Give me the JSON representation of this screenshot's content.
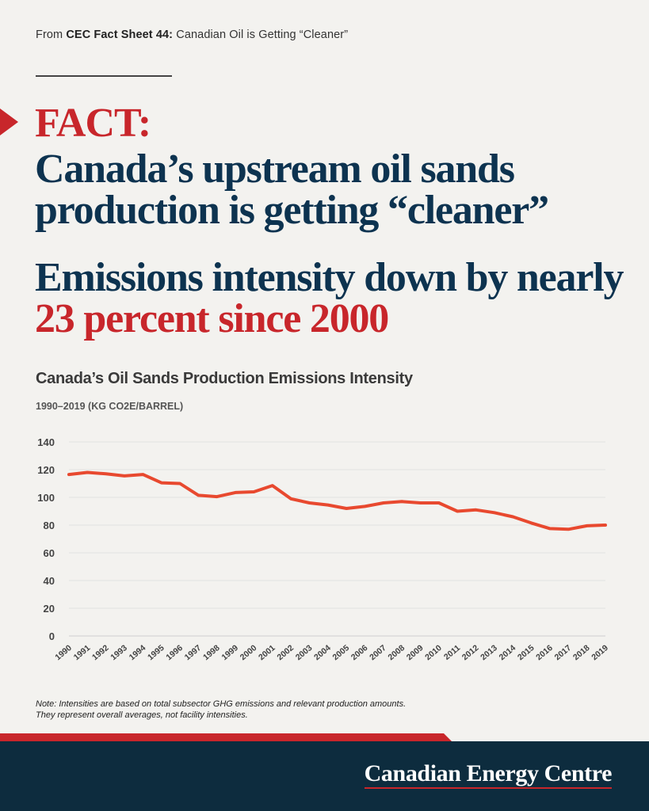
{
  "header": {
    "source_prefix": "From ",
    "source_bold": "CEC Fact Sheet 44:",
    "source_rest": " Canadian Oil is Getting “Cleaner”"
  },
  "headline": {
    "fact": "FACT:",
    "line1": "Canada’s upstream oil sands production is getting “cleaner”",
    "line2_prefix": "Emissions intensity down by nearly ",
    "line2_highlight": "23 percent since 2000"
  },
  "colors": {
    "accent_red": "#c8262b",
    "navy": "#0d3350",
    "footer_bg": "#0d2c3e",
    "line": "#e8492f"
  },
  "chart_data": {
    "type": "line",
    "title": "Canada’s Oil Sands Production Emissions Intensity",
    "subtitle": "1990–2019 (KG CO2E/BARREL)",
    "x": [
      "1990",
      "1991",
      "1992",
      "1993",
      "1994",
      "1995",
      "1996",
      "1997",
      "1998",
      "1999",
      "2000",
      "2001",
      "2002",
      "2003",
      "2004",
      "2005",
      "2006",
      "2007",
      "2008",
      "2009",
      "2010",
      "2011",
      "2012",
      "2013",
      "2014",
      "2015",
      "2016",
      "2017",
      "2018",
      "2019"
    ],
    "series": [
      {
        "values": [
          116.5,
          118,
          117,
          115.5,
          116.5,
          110.5,
          110,
          101.5,
          100.5,
          103.5,
          104,
          108.5,
          99,
          96,
          94.5,
          92,
          93.5,
          96,
          97,
          96,
          96,
          90,
          91,
          89,
          86,
          81.5,
          77.5,
          77,
          79.5,
          80
        ]
      }
    ],
    "ylim": [
      0,
      140
    ],
    "yticks": [
      0,
      20,
      40,
      60,
      80,
      100,
      120,
      140
    ],
    "grid": true
  },
  "note": {
    "line1": "Note: Intensities are based on total subsector GHG emissions and relevant production amounts.",
    "line2": "They represent overall averages, not facility intensities."
  },
  "footer": {
    "brand": "Canadian Energy Centre"
  }
}
